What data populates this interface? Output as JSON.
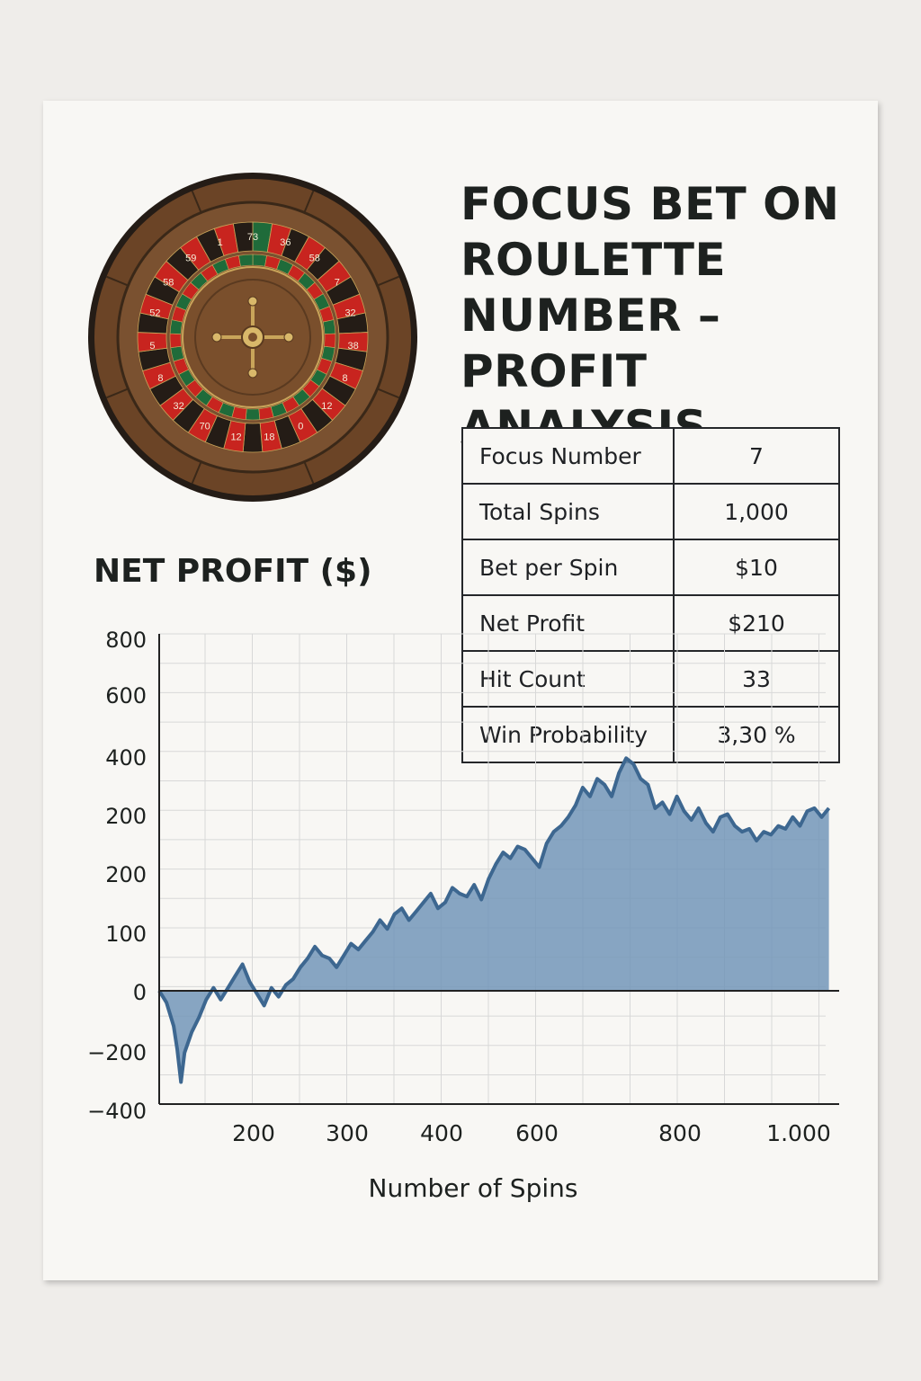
{
  "title": "FOCUS BET ON\nROULETTE\nNUMBER –\nPROFIT ANALYSIS",
  "wheel": {
    "icon": "roulette-wheel-icon",
    "numbers": [
      "73",
      "36",
      "58",
      "7",
      "32",
      "38",
      "8",
      "12",
      "0",
      "18",
      "12",
      "70",
      "32",
      "8",
      "5",
      "52",
      "58",
      "59",
      "1"
    ]
  },
  "stats": [
    {
      "label": "Focus Number",
      "value": "7"
    },
    {
      "label": "Total Spins",
      "value": "1,000"
    },
    {
      "label": "Bet per Spin",
      "value": "$10"
    },
    {
      "label": "Net Profit",
      "value": "$210"
    },
    {
      "label": "Hit Count",
      "value": "33"
    },
    {
      "label": "Win Probability",
      "value": "3,30 %"
    }
  ],
  "chart_data": {
    "type": "area",
    "title": "NET PROFIT ($)",
    "xlabel": "Number of Spins",
    "ylabel": "",
    "x_ticks": [
      "200",
      "300",
      "400",
      "600",
      "800",
      "1.000"
    ],
    "y_ticks": [
      "800",
      "600",
      "400",
      "200",
      "200",
      "100",
      "0",
      "−200",
      "−400"
    ],
    "grid": true,
    "series": [
      {
        "values": [
          [
            0,
            0
          ],
          [
            10,
            -40
          ],
          [
            20,
            -120
          ],
          [
            25,
            -200
          ],
          [
            30,
            -310
          ],
          [
            35,
            -210
          ],
          [
            45,
            -140
          ],
          [
            55,
            -90
          ],
          [
            65,
            -30
          ],
          [
            75,
            10
          ],
          [
            85,
            -30
          ],
          [
            95,
            10
          ],
          [
            105,
            50
          ],
          [
            115,
            90
          ],
          [
            125,
            30
          ],
          [
            135,
            -10
          ],
          [
            145,
            -50
          ],
          [
            155,
            10
          ],
          [
            165,
            -20
          ],
          [
            175,
            20
          ],
          [
            185,
            40
          ],
          [
            195,
            80
          ],
          [
            205,
            110
          ],
          [
            215,
            150
          ],
          [
            225,
            120
          ],
          [
            235,
            110
          ],
          [
            245,
            80
          ],
          [
            255,
            120
          ],
          [
            265,
            160
          ],
          [
            275,
            140
          ],
          [
            285,
            170
          ],
          [
            295,
            200
          ],
          [
            305,
            240
          ],
          [
            315,
            210
          ],
          [
            325,
            260
          ],
          [
            335,
            280
          ],
          [
            345,
            240
          ],
          [
            355,
            270
          ],
          [
            365,
            300
          ],
          [
            375,
            330
          ],
          [
            385,
            280
          ],
          [
            395,
            300
          ],
          [
            405,
            350
          ],
          [
            415,
            330
          ],
          [
            425,
            320
          ],
          [
            435,
            360
          ],
          [
            445,
            310
          ],
          [
            455,
            380
          ],
          [
            465,
            430
          ],
          [
            475,
            470
          ],
          [
            485,
            450
          ],
          [
            495,
            490
          ],
          [
            505,
            480
          ],
          [
            515,
            450
          ],
          [
            525,
            420
          ],
          [
            535,
            500
          ],
          [
            545,
            540
          ],
          [
            555,
            560
          ],
          [
            565,
            590
          ],
          [
            575,
            630
          ],
          [
            585,
            690
          ],
          [
            595,
            660
          ],
          [
            605,
            720
          ],
          [
            615,
            700
          ],
          [
            625,
            660
          ],
          [
            635,
            740
          ],
          [
            645,
            790
          ],
          [
            655,
            770
          ],
          [
            665,
            720
          ],
          [
            675,
            700
          ],
          [
            685,
            620
          ],
          [
            695,
            640
          ],
          [
            705,
            600
          ],
          [
            715,
            660
          ],
          [
            725,
            610
          ],
          [
            735,
            580
          ],
          [
            745,
            620
          ],
          [
            755,
            570
          ],
          [
            765,
            540
          ],
          [
            775,
            590
          ],
          [
            785,
            600
          ],
          [
            795,
            560
          ],
          [
            805,
            540
          ],
          [
            815,
            550
          ],
          [
            825,
            510
          ],
          [
            835,
            540
          ],
          [
            845,
            530
          ],
          [
            855,
            560
          ],
          [
            865,
            550
          ],
          [
            875,
            590
          ],
          [
            885,
            560
          ],
          [
            895,
            610
          ],
          [
            905,
            620
          ],
          [
            915,
            590
          ],
          [
            925,
            620
          ]
        ]
      }
    ]
  },
  "colors": {
    "line": "#3d6790",
    "fill": "#7396b8",
    "grid": "#d8d8d8",
    "ink": "#1d211f",
    "wheel_wood": "#6b4426",
    "wheel_red": "#c8241f",
    "wheel_green": "#1f6b3a",
    "wheel_dark": "#241c16"
  }
}
